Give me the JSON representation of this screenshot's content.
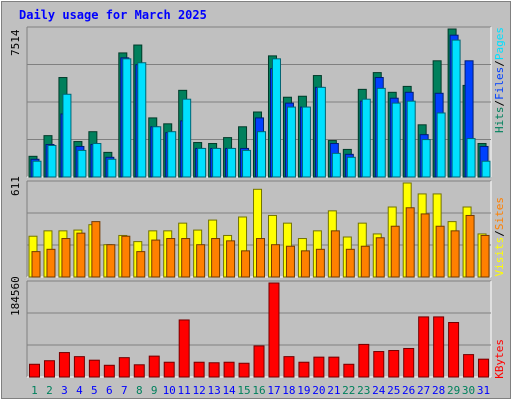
{
  "title": "Daily usage for March 2025",
  "colors": {
    "background": "#c0c0c0",
    "title": "#0000ff",
    "hits": "#00805c",
    "files": "#0040ff",
    "pages": "#00e0ff",
    "visits": "#ffff00",
    "sites": "#ff8000",
    "kbytes": "#ff0000",
    "weekend_label": "#00805c",
    "weekday_label": "#0000ff"
  },
  "legends": {
    "top": [
      {
        "label": "Hits",
        "color": "#00805c"
      },
      {
        "label": "Files",
        "color": "#0040ff"
      },
      {
        "label": "Pages",
        "color": "#00e0ff"
      }
    ],
    "middle": [
      {
        "label": "Visits",
        "color": "#ffff00"
      },
      {
        "label": "Sites",
        "color": "#ff8000"
      }
    ],
    "bottom": [
      {
        "label": "KBytes",
        "color": "#ff0000"
      }
    ]
  },
  "max_labels": {
    "top": "7514",
    "middle": "611",
    "bottom": "184560"
  },
  "chart_data": [
    {
      "type": "bar",
      "panel": "top",
      "ymax": 7514,
      "categories": [
        "1",
        "2",
        "3",
        "4",
        "5",
        "6",
        "7",
        "8",
        "9",
        "10",
        "11",
        "12",
        "13",
        "14",
        "15",
        "16",
        "17",
        "18",
        "19",
        "20",
        "21",
        "22",
        "23",
        "24",
        "25",
        "26",
        "27",
        "28",
        "29",
        "30",
        "31"
      ],
      "series": [
        {
          "name": "Hits",
          "values": [
            1050,
            2100,
            5050,
            1800,
            2300,
            1250,
            6300,
            6700,
            3000,
            2700,
            4400,
            1750,
            1700,
            2000,
            2550,
            3300,
            6150,
            4050,
            4100,
            5150,
            1850,
            1400,
            4450,
            5300,
            4300,
            4600,
            2650,
            5900,
            7514,
            4650,
            1700
          ]
        },
        {
          "name": "Files",
          "values": [
            900,
            1650,
            3200,
            1550,
            1650,
            1000,
            6050,
            5700,
            2550,
            2250,
            2850,
            1450,
            1450,
            1450,
            1450,
            3000,
            5500,
            3750,
            3550,
            4550,
            1700,
            1150,
            3850,
            5050,
            4000,
            4300,
            2150,
            4250,
            7200,
            5900,
            1550
          ]
        },
        {
          "name": "Pages",
          "values": [
            800,
            1600,
            4200,
            1350,
            1700,
            900,
            6000,
            5800,
            2550,
            2300,
            3950,
            1450,
            1450,
            1450,
            1350,
            2300,
            6000,
            3550,
            3550,
            4550,
            1200,
            1000,
            3950,
            4500,
            3750,
            3850,
            1900,
            3250,
            6950,
            1950,
            800
          ]
        }
      ]
    },
    {
      "type": "bar",
      "panel": "middle",
      "ymax": 611,
      "categories": [
        "1",
        "2",
        "3",
        "4",
        "5",
        "6",
        "7",
        "8",
        "9",
        "10",
        "11",
        "12",
        "13",
        "14",
        "15",
        "16",
        "17",
        "18",
        "19",
        "20",
        "21",
        "22",
        "23",
        "24",
        "25",
        "26",
        "27",
        "28",
        "29",
        "30",
        "31"
      ],
      "series": [
        {
          "name": "Visits",
          "values": [
            265,
            300,
            300,
            305,
            340,
            210,
            270,
            230,
            300,
            300,
            350,
            305,
            370,
            270,
            390,
            570,
            400,
            350,
            250,
            300,
            430,
            260,
            350,
            280,
            455,
            611,
            540,
            540,
            360,
            455,
            280
          ]
        },
        {
          "name": "Sites",
          "values": [
            165,
            180,
            250,
            285,
            360,
            210,
            265,
            165,
            240,
            250,
            250,
            210,
            250,
            235,
            170,
            250,
            210,
            200,
            170,
            180,
            300,
            180,
            200,
            255,
            330,
            450,
            410,
            330,
            300,
            400,
            270
          ]
        }
      ]
    },
    {
      "type": "bar",
      "panel": "bottom",
      "ymax": 184560,
      "categories": [
        "1",
        "2",
        "3",
        "4",
        "5",
        "6",
        "7",
        "8",
        "9",
        "10",
        "11",
        "12",
        "13",
        "14",
        "15",
        "16",
        "17",
        "18",
        "19",
        "20",
        "21",
        "22",
        "23",
        "24",
        "25",
        "26",
        "27",
        "28",
        "29",
        "30",
        "31"
      ],
      "series": [
        {
          "name": "KBytes",
          "values": [
            25000,
            32000,
            48000,
            40000,
            33000,
            23000,
            38000,
            24000,
            41000,
            29000,
            112000,
            29000,
            28000,
            29000,
            27000,
            61000,
            184560,
            40000,
            29000,
            39000,
            39000,
            25000,
            64000,
            50000,
            52000,
            56000,
            118000,
            118000,
            107000,
            44000,
            35000
          ]
        }
      ]
    }
  ],
  "x_labels": [
    "1",
    "2",
    "3",
    "4",
    "5",
    "6",
    "7",
    "8",
    "9",
    "10",
    "11",
    "12",
    "13",
    "14",
    "15",
    "16",
    "17",
    "18",
    "19",
    "20",
    "21",
    "22",
    "23",
    "24",
    "25",
    "26",
    "27",
    "28",
    "29",
    "30",
    "31"
  ],
  "weekend_days": [
    1,
    2,
    8,
    9,
    15,
    16,
    22,
    23,
    29,
    30
  ]
}
